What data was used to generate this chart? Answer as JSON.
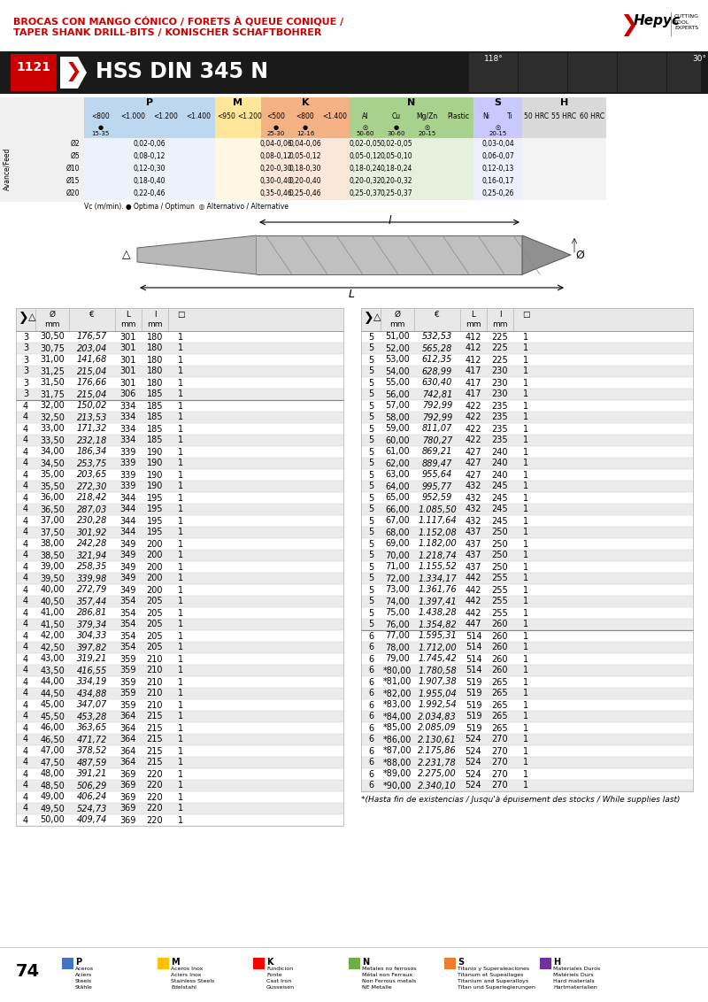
{
  "title_line1": "BROCAS CON MANGO CÓNICO / FORETS À QUEUE CONIQUE /",
  "title_line2": "TAPER SHANK DRILL-BITS / KONISCHER SCHAFTBOHRER",
  "series": "1121",
  "product": "HSS DIN 345 N",
  "angle1": "118°",
  "angle2": "30°",
  "left_table": [
    [
      3,
      "30,50",
      "176,57",
      301,
      180,
      1
    ],
    [
      3,
      "30,75",
      "203,04",
      301,
      180,
      1
    ],
    [
      3,
      "31,00",
      "141,68",
      301,
      180,
      1
    ],
    [
      3,
      "31,25",
      "215,04",
      301,
      180,
      1
    ],
    [
      3,
      "31,50",
      "176,66",
      301,
      180,
      1
    ],
    [
      3,
      "31,75",
      "215,04",
      306,
      185,
      1
    ],
    [
      4,
      "32,00",
      "150,02",
      334,
      185,
      1
    ],
    [
      4,
      "32,50",
      "213,53",
      334,
      185,
      1
    ],
    [
      4,
      "33,00",
      "171,32",
      334,
      185,
      1
    ],
    [
      4,
      "33,50",
      "232,18",
      334,
      185,
      1
    ],
    [
      4,
      "34,00",
      "186,34",
      339,
      190,
      1
    ],
    [
      4,
      "34,50",
      "253,75",
      339,
      190,
      1
    ],
    [
      4,
      "35,00",
      "203,65",
      339,
      190,
      1
    ],
    [
      4,
      "35,50",
      "272,30",
      339,
      190,
      1
    ],
    [
      4,
      "36,00",
      "218,42",
      344,
      195,
      1
    ],
    [
      4,
      "36,50",
      "287,03",
      344,
      195,
      1
    ],
    [
      4,
      "37,00",
      "230,28",
      344,
      195,
      1
    ],
    [
      4,
      "37,50",
      "301,92",
      344,
      195,
      1
    ],
    [
      4,
      "38,00",
      "242,28",
      349,
      200,
      1
    ],
    [
      4,
      "38,50",
      "321,94",
      349,
      200,
      1
    ],
    [
      4,
      "39,00",
      "258,35",
      349,
      200,
      1
    ],
    [
      4,
      "39,50",
      "339,98",
      349,
      200,
      1
    ],
    [
      4,
      "40,00",
      "272,79",
      349,
      200,
      1
    ],
    [
      4,
      "40,50",
      "357,44",
      354,
      205,
      1
    ],
    [
      4,
      "41,00",
      "286,81",
      354,
      205,
      1
    ],
    [
      4,
      "41,50",
      "379,34",
      354,
      205,
      1
    ],
    [
      4,
      "42,00",
      "304,33",
      354,
      205,
      1
    ],
    [
      4,
      "42,50",
      "397,82",
      354,
      205,
      1
    ],
    [
      4,
      "43,00",
      "319,21",
      359,
      210,
      1
    ],
    [
      4,
      "43,50",
      "416,55",
      359,
      210,
      1
    ],
    [
      4,
      "44,00",
      "334,19",
      359,
      210,
      1
    ],
    [
      4,
      "44,50",
      "434,88",
      359,
      210,
      1
    ],
    [
      4,
      "45,00",
      "347,07",
      359,
      210,
      1
    ],
    [
      4,
      "45,50",
      "453,28",
      364,
      215,
      1
    ],
    [
      4,
      "46,00",
      "363,65",
      364,
      215,
      1
    ],
    [
      4,
      "46,50",
      "471,72",
      364,
      215,
      1
    ],
    [
      4,
      "47,00",
      "378,52",
      364,
      215,
      1
    ],
    [
      4,
      "47,50",
      "487,59",
      364,
      215,
      1
    ],
    [
      4,
      "48,00",
      "391,21",
      369,
      220,
      1
    ],
    [
      4,
      "48,50",
      "506,29",
      369,
      220,
      1
    ],
    [
      4,
      "49,00",
      "406,24",
      369,
      220,
      1
    ],
    [
      4,
      "49,50",
      "524,73",
      369,
      220,
      1
    ],
    [
      4,
      "50,00",
      "409,74",
      369,
      220,
      1
    ]
  ],
  "right_table": [
    [
      5,
      "51,00",
      "532,53",
      412,
      225,
      1
    ],
    [
      5,
      "52,00",
      "565,28",
      412,
      225,
      1
    ],
    [
      5,
      "53,00",
      "612,35",
      412,
      225,
      1
    ],
    [
      5,
      "54,00",
      "628,99",
      417,
      230,
      1
    ],
    [
      5,
      "55,00",
      "630,40",
      417,
      230,
      1
    ],
    [
      5,
      "56,00",
      "742,81",
      417,
      230,
      1
    ],
    [
      5,
      "57,00",
      "792,99",
      422,
      235,
      1
    ],
    [
      5,
      "58,00",
      "792,99",
      422,
      235,
      1
    ],
    [
      5,
      "59,00",
      "811,07",
      422,
      235,
      1
    ],
    [
      5,
      "60,00",
      "780,27",
      422,
      235,
      1
    ],
    [
      5,
      "61,00",
      "869,21",
      427,
      240,
      1
    ],
    [
      5,
      "62,00",
      "889,47",
      427,
      240,
      1
    ],
    [
      5,
      "63,00",
      "955,64",
      427,
      240,
      1
    ],
    [
      5,
      "64,00",
      "995,77",
      432,
      245,
      1
    ],
    [
      5,
      "65,00",
      "952,59",
      432,
      245,
      1
    ],
    [
      5,
      "66,00",
      "1.085,50",
      432,
      245,
      1
    ],
    [
      5,
      "67,00",
      "1.117,64",
      432,
      245,
      1
    ],
    [
      5,
      "68,00",
      "1.152,08",
      437,
      250,
      1
    ],
    [
      5,
      "69,00",
      "1.182,00",
      437,
      250,
      1
    ],
    [
      5,
      "70,00",
      "1.218,74",
      437,
      250,
      1
    ],
    [
      5,
      "71,00",
      "1.155,52",
      437,
      250,
      1
    ],
    [
      5,
      "72,00",
      "1.334,17",
      442,
      255,
      1
    ],
    [
      5,
      "73,00",
      "1.361,76",
      442,
      255,
      1
    ],
    [
      5,
      "74,00",
      "1.397,41",
      442,
      255,
      1
    ],
    [
      5,
      "75,00",
      "1.438,28",
      442,
      255,
      1
    ],
    [
      5,
      "76,00",
      "1.354,82",
      447,
      260,
      1
    ],
    [
      6,
      "77,00",
      "1.595,31",
      514,
      260,
      1
    ],
    [
      6,
      "78,00",
      "1.712,00",
      514,
      260,
      1
    ],
    [
      6,
      "79,00",
      "1.745,42",
      514,
      260,
      1
    ],
    [
      6,
      "*80,00",
      "1.780,58",
      514,
      260,
      1
    ],
    [
      6,
      "*81,00",
      "1.907,38",
      519,
      265,
      1
    ],
    [
      6,
      "*82,00",
      "1.955,04",
      519,
      265,
      1
    ],
    [
      6,
      "*83,00",
      "1.992,54",
      519,
      265,
      1
    ],
    [
      6,
      "*84,00",
      "2.034,83",
      519,
      265,
      1
    ],
    [
      6,
      "*85,00",
      "2.085,09",
      519,
      265,
      1
    ],
    [
      6,
      "*86,00",
      "2.130,61",
      524,
      270,
      1
    ],
    [
      6,
      "*87,00",
      "2.175,86",
      524,
      270,
      1
    ],
    [
      6,
      "*88,00",
      "2.231,78",
      524,
      270,
      1
    ],
    [
      6,
      "*89,00",
      "2.275,00",
      524,
      270,
      1
    ],
    [
      6,
      "*90,00",
      "2.340,10",
      524,
      270,
      1
    ]
  ],
  "footnote": "*(Hasta fin de existencias / Jusqu'à épuisement des stocks / While supplies last)",
  "page_number": "74",
  "cutting_table_data": {
    "p_sub": [
      "<800",
      "<1.000",
      "<1.200",
      "<1.400"
    ],
    "m_sub": [
      "<950",
      "<1.200"
    ],
    "k_sub": [
      "<500",
      "<800",
      "<1.400"
    ],
    "n_sub": [
      "Al",
      "Cu",
      "Mg/Zn",
      "Plastic"
    ],
    "s_sub": [
      "Ni",
      "Ti"
    ],
    "h_sub": [
      "50 HRC",
      "55 HRC",
      "60 HRC"
    ],
    "vc_row1_p": "15-35",
    "vc_row1_k1": "25-30",
    "vc_row1_k2": "12-16",
    "vc_row1_n1": "50-60",
    "vc_row1_n2": "30-60",
    "vc_row1_s": "20-15",
    "feed_rows": [
      {
        "label": "Ø2",
        "p": "0,02-0,06",
        "k1": "0,04-0,06",
        "k2": "0,04-0,06",
        "n1": "0,02-0,05",
        "n2": "0,02-0,05",
        "s": "0,03-0,04"
      },
      {
        "label": "Ø5",
        "p": "0,08-0,12",
        "k1": "0,08-0,12",
        "k2": "0,05-0,12",
        "n1": "0,05-0,12",
        "n2": "0,05-0,10",
        "s": "0,06-0,07"
      },
      {
        "label": "Ø10",
        "p": "0,12-0,30",
        "k1": "0,20-0,30",
        "k2": "0,18-0,30",
        "n1": "0,18-0,24",
        "n2": "0,18-0,24",
        "s": "0,12-0,13"
      },
      {
        "label": "Ø15",
        "p": "0,18-0,40",
        "k1": "0,30-0,40",
        "k2": "0,20-0,40",
        "n1": "0,20-0,32",
        "n2": "0,20-0,32",
        "s": "0,16-0,17"
      },
      {
        "label": "Ø20",
        "p": "0,22-0,46",
        "k1": "0,35-0,46",
        "k2": "0,25-0,46",
        "n1": "0,25-0,37",
        "n2": "0,25-0,37",
        "s": "0,25-0,26"
      }
    ]
  },
  "material_legend": [
    {
      "code": "P",
      "color": "#4472C4",
      "lines": [
        "Aceros",
        "Aciers",
        "Steels",
        "Stähle"
      ]
    },
    {
      "code": "M",
      "color": "#FFC000",
      "lines": [
        "Aceros Inox",
        "Aciers Inox",
        "Stainless Steels",
        "Edelstahl"
      ]
    },
    {
      "code": "K",
      "color": "#FF0000",
      "lines": [
        "Fundicion",
        "Fonte",
        "Cast Iron",
        "Gusseisen"
      ]
    },
    {
      "code": "N",
      "color": "#70AD47",
      "lines": [
        "Metales no ferrosos",
        "Métal non Ferraux",
        "Non Ferrous metals",
        "NE Metalle"
      ]
    },
    {
      "code": "S",
      "color": "#ED7D31",
      "lines": [
        "Titanio y Superaleaciones",
        "Titanum et Supeallages",
        "Titanium and Superalloys",
        "Titan und Superlegierungen"
      ]
    },
    {
      "code": "H",
      "color": "#7030A0",
      "lines": [
        "Materiales Duros",
        "Matériels Durs",
        "Hard materials",
        "Hartmaterialien"
      ]
    }
  ],
  "col_colors": {
    "P": "#BDD7EE",
    "M": "#FFE699",
    "K": "#F4B183",
    "N": "#A9D18E",
    "S": "#C9C9FF",
    "H": "#D9D9D9"
  }
}
